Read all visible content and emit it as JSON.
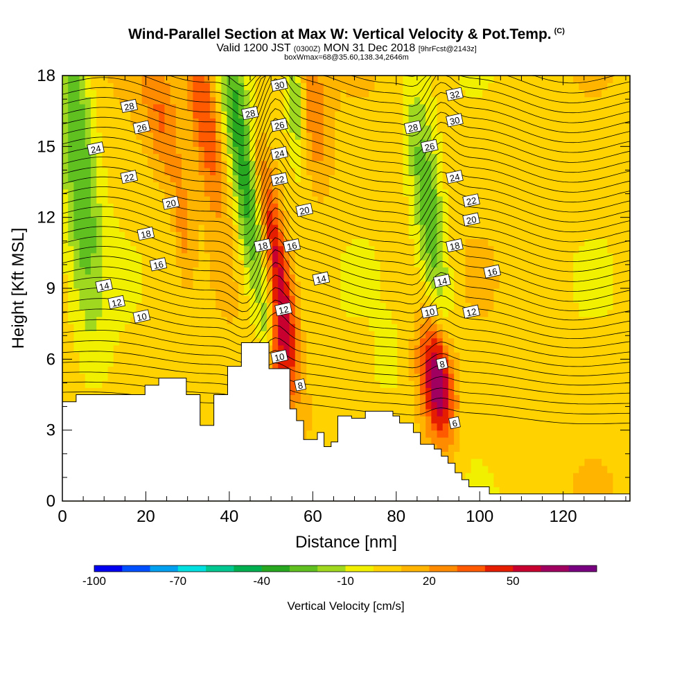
{
  "chart_data": {
    "type": "heatmap",
    "title": "Wind-Parallel Section at Max W: Vertical Velocity & Pot.Temp.",
    "copyright": "(C)",
    "subtitle_main": "Valid 1200 JST",
    "subtitle_utc": "(0300Z)",
    "subtitle_date": "MON 31 Dec 2018",
    "subtitle_fcst": "[9hrFcst@2143z]",
    "subtitle_box": "boxWmax=68@35.60,138.34,2646m",
    "xlabel": "Distance [nm]",
    "ylabel": "Height [Kft MSL]",
    "xlim": [
      0,
      136
    ],
    "ylim": [
      0,
      18
    ],
    "x_ticks": [
      0,
      20,
      40,
      60,
      80,
      100,
      120
    ],
    "y_ticks": [
      0,
      3,
      6,
      9,
      12,
      15,
      18
    ],
    "colorbar": {
      "title": "Vertical Velocity [cm/s]",
      "levels": [
        -100,
        -90,
        -80,
        -70,
        -60,
        -50,
        -40,
        -30,
        -20,
        -10,
        0,
        10,
        20,
        30,
        40,
        50,
        60,
        70
      ],
      "colors": [
        "#0000f0",
        "#0050ff",
        "#00a0f0",
        "#00e0e0",
        "#00c890",
        "#00b050",
        "#28a820",
        "#60c020",
        "#a0d820",
        "#f0f000",
        "#ffd200",
        "#ffb400",
        "#ff8c00",
        "#ff5a00",
        "#e61e00",
        "#c80030",
        "#a00060",
        "#780080"
      ],
      "tick_labels": [
        "-100",
        "-70",
        "-40",
        "-10",
        "20",
        "50"
      ],
      "tick_values": [
        -100,
        -70,
        -40,
        -10,
        20,
        50
      ]
    },
    "updraft_cores": [
      {
        "x": 51,
        "y": 10.5,
        "w": 45,
        "sx": 2.0,
        "sy": 3.5,
        "shear": 0.9
      },
      {
        "x": 52,
        "y": 6.0,
        "w": 38,
        "sx": 2.5,
        "sy": 2.0,
        "shear": 0.3
      },
      {
        "x": 34,
        "y": 16.5,
        "w": 38,
        "sx": 2.5,
        "sy": 3.0,
        "shear": 0.8
      },
      {
        "x": 24,
        "y": 16.0,
        "w": 25,
        "sx": 3.0,
        "sy": 2.0,
        "shear": 0.8
      },
      {
        "x": 60,
        "y": 16.5,
        "w": 22,
        "sx": 2.5,
        "sy": 2.5,
        "shear": 0.5
      },
      {
        "x": 90,
        "y": 5.0,
        "w": 68,
        "sx": 2.8,
        "sy": 1.8,
        "shear": 0.5
      },
      {
        "x": 29,
        "y": 11.5,
        "w": 18,
        "sx": 1.5,
        "sy": 1.5,
        "shear": 0.3
      }
    ],
    "downdraft_cores": [
      {
        "x": 4,
        "y": 14.5,
        "w": -35,
        "sx": 3.0,
        "sy": 5.0,
        "shear": 0.4
      },
      {
        "x": 44,
        "y": 13.5,
        "w": -45,
        "sx": 2.5,
        "sy": 4.5,
        "shear": 0.7
      },
      {
        "x": 56,
        "y": 17.0,
        "w": -30,
        "sx": 1.5,
        "sy": 2.0,
        "shear": 0.3
      },
      {
        "x": 88,
        "y": 12.0,
        "w": -35,
        "sx": 2.5,
        "sy": 4.0,
        "shear": 0.7
      },
      {
        "x": 49,
        "y": 7.5,
        "w": -20,
        "sx": 1.0,
        "sy": 0.8,
        "shear": 0.0
      },
      {
        "x": 78,
        "y": 6.0,
        "w": -12,
        "sx": 2.0,
        "sy": 1.0,
        "shear": 0.0
      }
    ],
    "terrain": {
      "x": [
        0,
        3.3,
        19.8,
        23.1,
        29.7,
        33,
        36.3,
        39.6,
        42.9,
        48.2,
        49.5,
        54.5,
        56.1,
        57.8,
        61.1,
        62.7,
        64.4,
        66,
        69.3,
        72.6,
        79.2,
        80.8,
        84.1,
        85.8,
        89.1,
        90.8,
        92.4,
        94.1,
        95.7,
        97.4,
        99,
        102.3,
        104,
        108,
        136
      ],
      "y": [
        4.2,
        4.5,
        4.9,
        5.2,
        4.5,
        3.2,
        4.5,
        5.7,
        6.7,
        6.7,
        5.6,
        3.9,
        3.4,
        2.6,
        2.9,
        2.3,
        2.5,
        3.6,
        3.5,
        3.8,
        3.6,
        3.3,
        2.9,
        2.4,
        2.2,
        1.9,
        1.6,
        1.2,
        0.9,
        0.6,
        0.6,
        0.3,
        0.3,
        0.3,
        0.3
      ]
    },
    "theta_contour_labels": [
      {
        "text": "28",
        "x": 16,
        "y": 16.7
      },
      {
        "text": "26",
        "x": 19,
        "y": 15.8
      },
      {
        "text": "24",
        "x": 8,
        "y": 14.9
      },
      {
        "text": "22",
        "x": 16,
        "y": 13.7
      },
      {
        "text": "20",
        "x": 26,
        "y": 12.6
      },
      {
        "text": "18",
        "x": 20,
        "y": 11.3
      },
      {
        "text": "16",
        "x": 23,
        "y": 10.0
      },
      {
        "text": "14",
        "x": 10,
        "y": 9.1
      },
      {
        "text": "12",
        "x": 13,
        "y": 8.4
      },
      {
        "text": "10",
        "x": 19,
        "y": 7.8
      },
      {
        "text": "30",
        "x": 52,
        "y": 17.6
      },
      {
        "text": "28",
        "x": 45,
        "y": 16.4
      },
      {
        "text": "26",
        "x": 52,
        "y": 15.9
      },
      {
        "text": "24",
        "x": 52,
        "y": 14.7
      },
      {
        "text": "22",
        "x": 52,
        "y": 13.6
      },
      {
        "text": "20",
        "x": 58,
        "y": 12.3
      },
      {
        "text": "18",
        "x": 48,
        "y": 10.8
      },
      {
        "text": "16",
        "x": 55,
        "y": 10.8
      },
      {
        "text": "14",
        "x": 62,
        "y": 9.4
      },
      {
        "text": "12",
        "x": 53,
        "y": 8.1
      },
      {
        "text": "10",
        "x": 52,
        "y": 6.1
      },
      {
        "text": "8",
        "x": 57,
        "y": 4.9
      },
      {
        "text": "32",
        "x": 94,
        "y": 17.2
      },
      {
        "text": "30",
        "x": 94,
        "y": 16.1
      },
      {
        "text": "28",
        "x": 84,
        "y": 15.8
      },
      {
        "text": "26",
        "x": 88,
        "y": 15.0
      },
      {
        "text": "24",
        "x": 94,
        "y": 13.7
      },
      {
        "text": "22",
        "x": 98,
        "y": 12.7
      },
      {
        "text": "20",
        "x": 98,
        "y": 11.9
      },
      {
        "text": "18",
        "x": 94,
        "y": 10.8
      },
      {
        "text": "16",
        "x": 103,
        "y": 9.7
      },
      {
        "text": "14",
        "x": 91,
        "y": 9.3
      },
      {
        "text": "12",
        "x": 98,
        "y": 8.0
      },
      {
        "text": "10",
        "x": 88,
        "y": 8.0
      },
      {
        "text": "8",
        "x": 91,
        "y": 5.8
      },
      {
        "text": "6",
        "x": 94,
        "y": 3.3
      }
    ]
  }
}
